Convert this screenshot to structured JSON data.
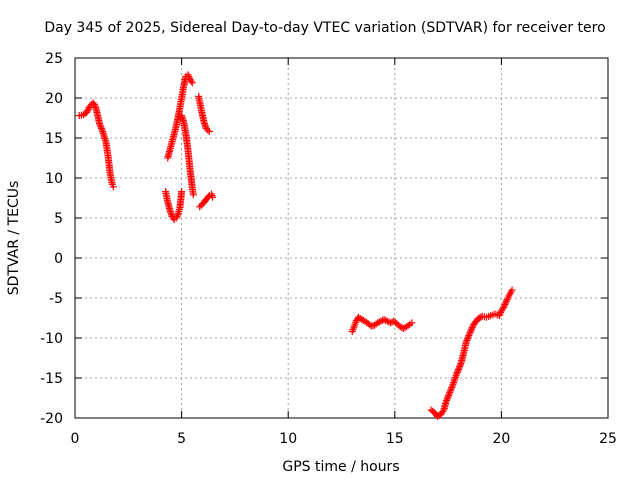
{
  "chart_data": {
    "type": "scatter",
    "title": "Day 345 of 2025, Sidereal Day-to-day VTEC variation (SDTVAR) for receiver tero",
    "xlabel": "GPS time / hours",
    "ylabel": "SDTVAR / TECUs",
    "xlim": [
      0,
      25
    ],
    "ylim": [
      -20,
      25
    ],
    "xticks": [
      0,
      5,
      10,
      15,
      20,
      25
    ],
    "yticks": [
      -20,
      -15,
      -10,
      -5,
      0,
      5,
      10,
      15,
      20,
      25
    ],
    "grid": true,
    "marker": "plus",
    "marker_color": "#ff0000",
    "series": [
      {
        "name": "SDTVAR",
        "segments": [
          [
            [
              0.2,
              17.8
            ],
            [
              0.4,
              17.9
            ],
            [
              0.55,
              18.2
            ],
            [
              0.7,
              19.0
            ],
            [
              0.85,
              19.4
            ],
            [
              0.95,
              19.0
            ],
            [
              1.05,
              18.0
            ],
            [
              1.15,
              16.8
            ],
            [
              1.3,
              15.8
            ],
            [
              1.45,
              14.5
            ],
            [
              1.55,
              12.8
            ],
            [
              1.65,
              10.5
            ],
            [
              1.75,
              9.2
            ],
            [
              1.8,
              8.9
            ]
          ],
          [
            [
              4.25,
              8.3
            ],
            [
              4.35,
              7.0
            ],
            [
              4.45,
              6.0
            ],
            [
              4.55,
              5.2
            ],
            [
              4.65,
              4.8
            ],
            [
              4.75,
              5.0
            ],
            [
              4.85,
              5.6
            ],
            [
              4.92,
              6.3
            ],
            [
              4.97,
              7.5
            ],
            [
              5.0,
              8.3
            ]
          ],
          [
            [
              4.35,
              12.5
            ],
            [
              4.45,
              13.5
            ],
            [
              4.6,
              15.0
            ],
            [
              4.75,
              16.5
            ],
            [
              4.9,
              18.5
            ],
            [
              5.0,
              20.0
            ],
            [
              5.1,
              21.5
            ],
            [
              5.2,
              22.7
            ],
            [
              5.3,
              22.9
            ],
            [
              5.4,
              22.3
            ],
            [
              5.5,
              21.9
            ]
          ],
          [
            [
              5.0,
              17.8
            ],
            [
              5.1,
              17.0
            ],
            [
              5.2,
              15.5
            ],
            [
              5.3,
              13.5
            ],
            [
              5.4,
              11.0
            ],
            [
              5.5,
              8.8
            ],
            [
              5.55,
              7.9
            ]
          ],
          [
            [
              5.8,
              20.2
            ],
            [
              5.85,
              19.5
            ],
            [
              5.95,
              18.2
            ],
            [
              6.05,
              17.0
            ],
            [
              6.15,
              16.2
            ],
            [
              6.3,
              15.8
            ]
          ],
          [
            [
              5.85,
              6.4
            ],
            [
              6.0,
              6.8
            ],
            [
              6.15,
              7.3
            ],
            [
              6.3,
              7.8
            ],
            [
              6.4,
              8.0
            ],
            [
              6.45,
              7.6
            ]
          ],
          [
            [
              13.0,
              -9.2
            ],
            [
              13.1,
              -8.5
            ],
            [
              13.2,
              -7.8
            ],
            [
              13.3,
              -7.4
            ],
            [
              13.45,
              -7.7
            ],
            [
              13.6,
              -7.9
            ],
            [
              13.75,
              -8.2
            ],
            [
              13.9,
              -8.5
            ],
            [
              14.05,
              -8.4
            ],
            [
              14.2,
              -8.1
            ],
            [
              14.35,
              -7.9
            ],
            [
              14.5,
              -7.7
            ],
            [
              14.65,
              -7.9
            ],
            [
              14.8,
              -8.1
            ],
            [
              14.95,
              -7.9
            ],
            [
              15.1,
              -8.2
            ],
            [
              15.25,
              -8.6
            ],
            [
              15.4,
              -8.8
            ],
            [
              15.55,
              -8.6
            ],
            [
              15.7,
              -8.3
            ],
            [
              15.8,
              -8.1
            ]
          ],
          [
            [
              16.7,
              -19.0
            ],
            [
              16.85,
              -19.3
            ],
            [
              17.0,
              -19.8
            ],
            [
              17.15,
              -19.6
            ],
            [
              17.3,
              -19.0
            ],
            [
              17.4,
              -18.0
            ],
            [
              17.55,
              -17.0
            ],
            [
              17.7,
              -16.0
            ],
            [
              17.9,
              -14.5
            ],
            [
              18.1,
              -13.2
            ],
            [
              18.2,
              -12.2
            ],
            [
              18.35,
              -10.5
            ],
            [
              18.5,
              -9.5
            ],
            [
              18.7,
              -8.3
            ],
            [
              18.9,
              -7.6
            ],
            [
              19.1,
              -7.3
            ],
            [
              19.3,
              -7.4
            ],
            [
              19.5,
              -7.2
            ],
            [
              19.7,
              -7.0
            ],
            [
              19.9,
              -7.2
            ],
            [
              20.0,
              -6.6
            ],
            [
              20.1,
              -6.2
            ],
            [
              20.2,
              -5.6
            ],
            [
              20.3,
              -5.0
            ],
            [
              20.4,
              -4.5
            ],
            [
              20.5,
              -4.0
            ]
          ]
        ]
      }
    ]
  }
}
